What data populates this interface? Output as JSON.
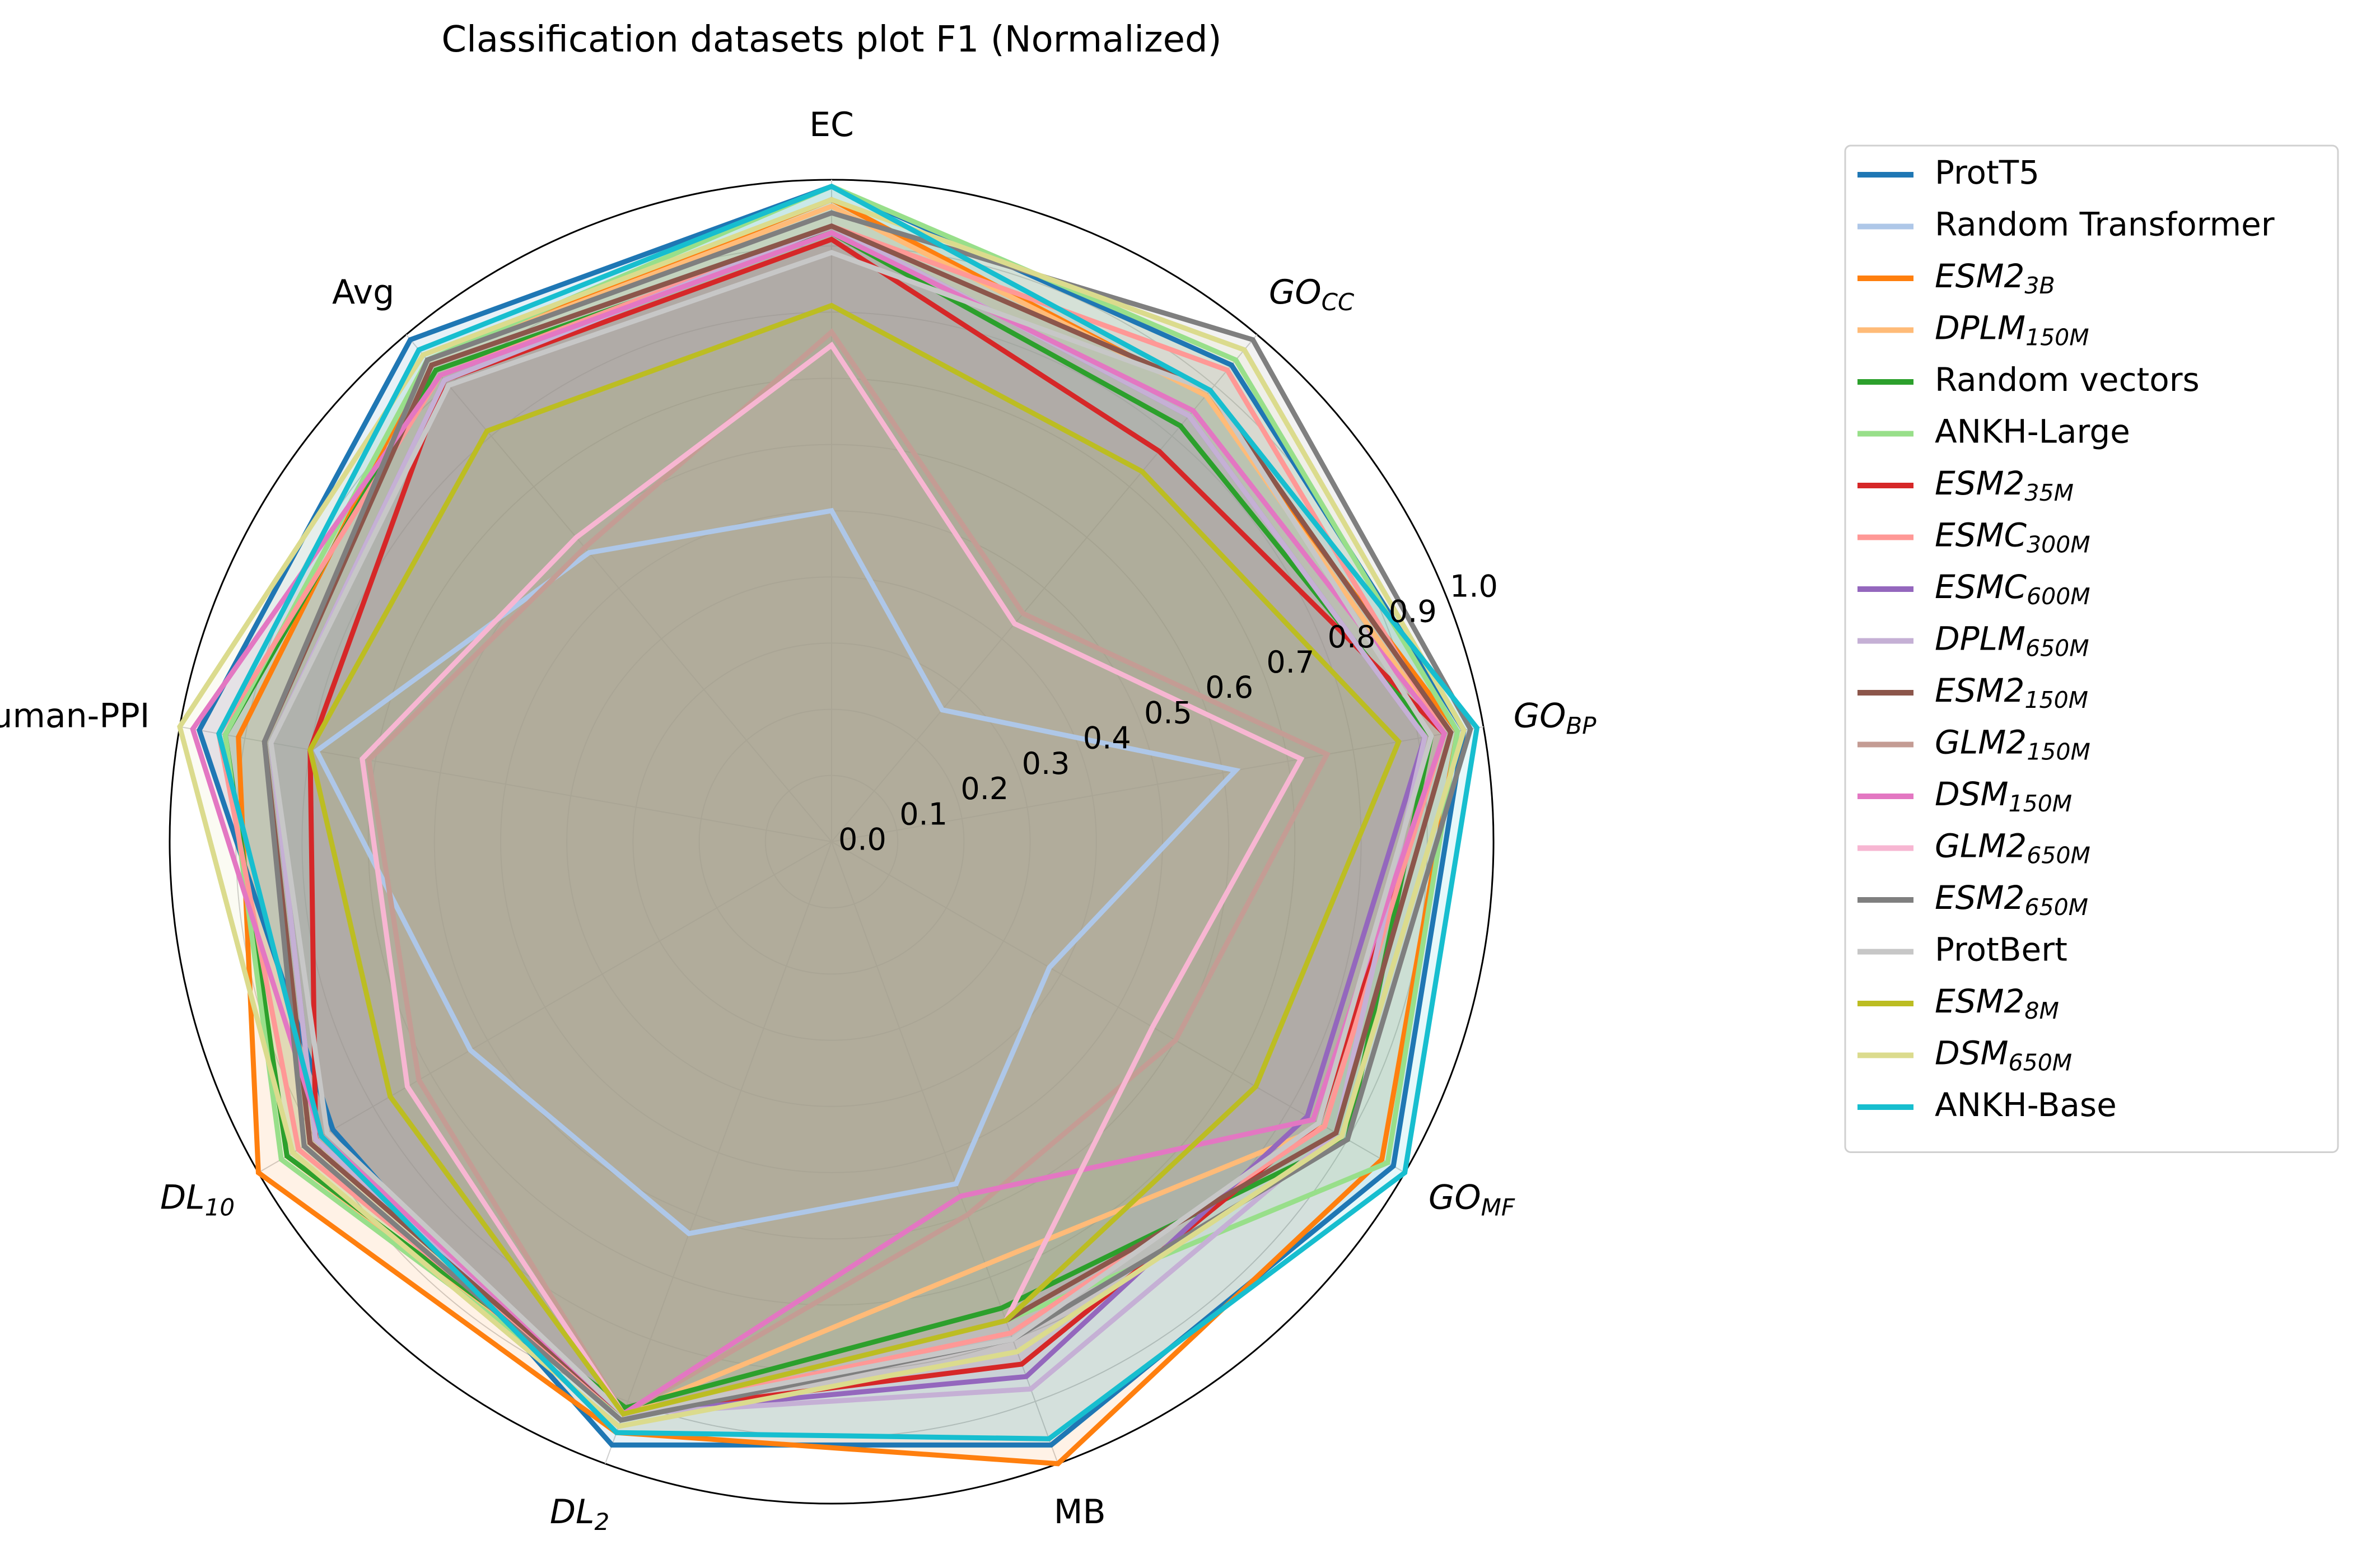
{
  "chart_data": {
    "type": "radar",
    "title": "Classification datasets plot F1 (Normalized)",
    "axes": [
      {
        "label": "EC",
        "italic": false
      },
      {
        "label": "GO",
        "sub": "CC",
        "italic": true
      },
      {
        "label": "GO",
        "sub": "BP",
        "italic": true
      },
      {
        "label": "GO",
        "sub": "MF",
        "italic": true
      },
      {
        "label": "MB",
        "italic": false
      },
      {
        "label": "DL",
        "sub": "2",
        "italic": true
      },
      {
        "label": "DL",
        "sub": "10",
        "italic": true
      },
      {
        "label": "Human-PPI",
        "italic": false
      },
      {
        "label": "Avg",
        "italic": false
      }
    ],
    "rlim": [
      0.0,
      1.0
    ],
    "rticks": [
      "0.0",
      "0.1",
      "0.2",
      "0.3",
      "0.4",
      "0.5",
      "0.6",
      "0.7",
      "0.8",
      "0.9",
      "1.0"
    ],
    "grid": true,
    "legend_position": "right",
    "series": [
      {
        "name": "ProtT5",
        "italic": false,
        "color": "#1f77b4",
        "values": [
          0.99,
          0.94,
          0.97,
          0.98,
          0.97,
          0.97,
          0.87,
          0.97,
          0.99
        ]
      },
      {
        "name": "Random Transformer",
        "italic": false,
        "color": "#aec7e8",
        "values": [
          0.5,
          0.26,
          0.62,
          0.38,
          0.55,
          0.63,
          0.63,
          0.79,
          0.57
        ]
      },
      {
        "name": "ESM2",
        "sub": "3B",
        "italic": true,
        "color": "#ff7f0e",
        "values": [
          0.97,
          0.88,
          0.96,
          0.96,
          1.0,
          0.95,
          1.0,
          0.91,
          0.95
        ]
      },
      {
        "name": "DPLM",
        "sub": "150M",
        "italic": true,
        "color": "#ffbb78",
        "values": [
          0.96,
          0.88,
          0.94,
          0.86,
          0.68,
          0.92,
          0.95,
          0.93,
          0.95
        ]
      },
      {
        "name": "Random vectors",
        "italic": false,
        "color": "#2ca02c",
        "values": [
          0.92,
          0.82,
          0.92,
          0.9,
          0.75,
          0.91,
          0.95,
          0.93,
          0.93
        ]
      },
      {
        "name": "ANKH-Large",
        "italic": false,
        "color": "#98df8a",
        "values": [
          0.99,
          0.95,
          0.96,
          0.97,
          0.77,
          0.92,
          0.96,
          0.93,
          0.95
        ]
      },
      {
        "name": "ESM2",
        "sub": "35M",
        "italic": true,
        "color": "#d62728",
        "values": [
          0.91,
          0.77,
          0.94,
          0.85,
          0.84,
          0.92,
          0.9,
          0.8,
          0.91
        ]
      },
      {
        "name": "ESMC",
        "sub": "300M",
        "italic": true,
        "color": "#ff9896",
        "values": [
          0.93,
          0.93,
          0.94,
          0.86,
          0.79,
          0.92,
          0.93,
          0.94,
          0.92
        ]
      },
      {
        "name": "ESMC",
        "sub": "600M",
        "italic": true,
        "color": "#9467bd",
        "values": [
          0.93,
          0.84,
          0.91,
          0.83,
          0.86,
          0.92,
          0.9,
          0.86,
          0.91
        ]
      },
      {
        "name": "DPLM",
        "sub": "650M",
        "italic": true,
        "color": "#c5b0d5",
        "values": [
          0.93,
          0.84,
          0.91,
          0.88,
          0.88,
          0.92,
          0.9,
          0.86,
          0.91
        ]
      },
      {
        "name": "ESM2",
        "sub": "150M",
        "italic": true,
        "color": "#8c564b",
        "values": [
          0.93,
          0.89,
          0.95,
          0.88,
          0.77,
          0.92,
          0.91,
          0.87,
          0.94
        ]
      },
      {
        "name": "GLM2",
        "sub": "150M",
        "italic": true,
        "color": "#c49c94",
        "values": [
          0.77,
          0.45,
          0.76,
          0.6,
          0.6,
          0.92,
          0.72,
          0.71,
          0.58
        ]
      },
      {
        "name": "DSM",
        "sub": "150M",
        "italic": true,
        "color": "#e377c2",
        "values": [
          0.92,
          0.85,
          0.94,
          0.84,
          0.57,
          0.92,
          0.89,
          0.98,
          0.92
        ]
      },
      {
        "name": "GLM2",
        "sub": "650M",
        "italic": true,
        "color": "#f7b6d2",
        "values": [
          0.75,
          0.43,
          0.72,
          0.56,
          0.77,
          0.92,
          0.74,
          0.72,
          0.6
        ]
      },
      {
        "name": "ESM2",
        "sub": "650M",
        "italic": true,
        "color": "#7f7f7f",
        "values": [
          0.95,
          0.99,
          0.98,
          0.9,
          0.8,
          0.93,
          0.92,
          0.87,
          0.95
        ]
      },
      {
        "name": "ProtBert",
        "italic": false,
        "color": "#c7c7c7",
        "values": [
          0.89,
          0.89,
          0.92,
          0.85,
          0.8,
          0.92,
          0.88,
          0.86,
          0.9
        ]
      },
      {
        "name": "ESM2",
        "sub": "8M",
        "italic": true,
        "color": "#bcbd22",
        "values": [
          0.81,
          0.73,
          0.87,
          0.74,
          0.77,
          0.92,
          0.77,
          0.8,
          0.81
        ]
      },
      {
        "name": "DSM",
        "sub": "650M",
        "italic": true,
        "color": "#dbdb8d",
        "values": [
          0.97,
          0.97,
          0.97,
          0.89,
          0.82,
          0.94,
          0.94,
          1.0,
          0.96
        ]
      },
      {
        "name": "ANKH-Base",
        "italic": false,
        "color": "#17becf",
        "values": [
          0.99,
          0.89,
          0.99,
          1.0,
          0.96,
          0.95,
          0.89,
          0.94,
          0.97
        ]
      }
    ]
  }
}
